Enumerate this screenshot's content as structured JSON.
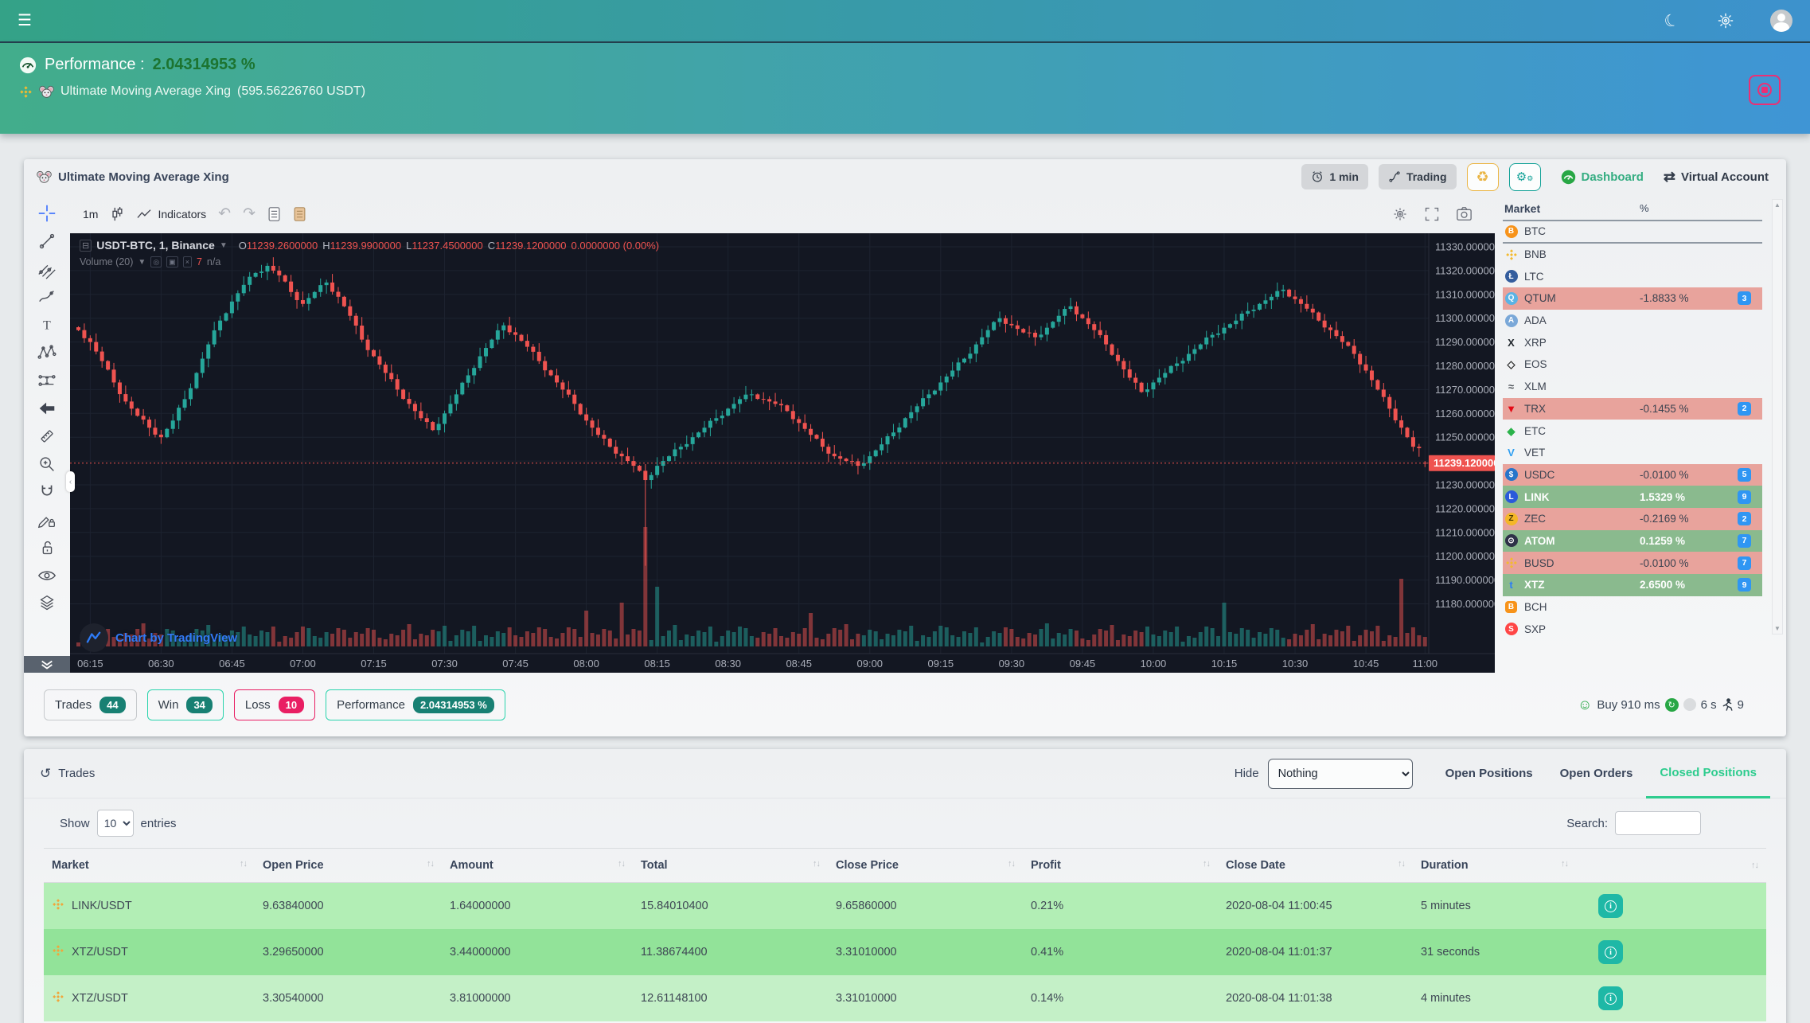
{
  "navbar": {
    "menu_icon": "☰",
    "moon_icon": "☾"
  },
  "header": {
    "performance_label": "Performance :",
    "performance_value": "2.04314953 %",
    "bot_title": "Ultimate Moving Average Xing",
    "bot_balance": "(595.56226760 USDT)"
  },
  "chart_card": {
    "title": "Ultimate Moving Average Xing",
    "controls": {
      "timeframe": "1 min",
      "mode": "Trading",
      "dashboard": "Dashboard",
      "virtual_account": "Virtual Account"
    },
    "tv": {
      "interval": "1m",
      "indicators_label": "Indicators",
      "legend": {
        "symbol": "USDT-BTC, 1, Binance",
        "o_label": "O",
        "o": "11239.2600000",
        "h_label": "H",
        "h": "11239.9900000",
        "l_label": "L",
        "l": "11237.4500000",
        "c_label": "C",
        "c": "11239.1200000",
        "change": "0.0000000 (0.00%)",
        "volume_label": "Volume (20)",
        "volume_value": "7",
        "volume_extra": "n/a"
      },
      "watermark": "Chart by TradingView",
      "price_label": "11239.1200000"
    },
    "footer": {
      "trades_label": "Trades",
      "trades_count": "44",
      "win_label": "Win",
      "win_count": "34",
      "loss_label": "Loss",
      "loss_count": "10",
      "perf_label": "Performance",
      "perf_value": "2.04314953 %",
      "status_buy": "Buy 910 ms",
      "status_interval": "6 s",
      "status_runs": "9"
    }
  },
  "market_panel": {
    "col_market": "Market",
    "col_pct": "%",
    "badge_color": "#2f96f3",
    "red_row_color": "#e8a39c",
    "green_row_color": "#8aba8e",
    "rows": [
      {
        "symbol": "BTC",
        "icon": "btc-icon",
        "style": "circle",
        "color": "#f7931a",
        "glyph": "B",
        "divider": true
      },
      {
        "symbol": "BNB",
        "icon": "bnb-icon",
        "style": "diamond",
        "color": "#f3ba2f"
      },
      {
        "symbol": "LTC",
        "icon": "ltc-icon",
        "style": "circle",
        "color": "#345d9d",
        "glyph": "Ł"
      },
      {
        "symbol": "QTUM",
        "icon": "qtum-icon",
        "style": "circle",
        "color": "#5bb3e4",
        "glyph": "Q",
        "state": "red",
        "pct": "-1.8833 %",
        "badge": "3"
      },
      {
        "symbol": "ADA",
        "icon": "ada-icon",
        "style": "circle",
        "color": "#7aa8d8",
        "glyph": "A"
      },
      {
        "symbol": "XRP",
        "icon": "xrp-icon",
        "style": "plain",
        "color": "#23292f",
        "glyph": "X"
      },
      {
        "symbol": "EOS",
        "icon": "eos-icon",
        "style": "plain",
        "color": "#2b2b2b",
        "glyph": "◇"
      },
      {
        "symbol": "XLM",
        "icon": "xlm-icon",
        "style": "plain",
        "color": "#4a4f55",
        "glyph": "≈"
      },
      {
        "symbol": "TRX",
        "icon": "trx-icon",
        "style": "plain",
        "color": "#e50915",
        "glyph": "▼",
        "state": "red",
        "pct": "-0.1455 %",
        "badge": "2"
      },
      {
        "symbol": "ETC",
        "icon": "etc-icon",
        "style": "plain",
        "color": "#2bb34b",
        "glyph": "◆"
      },
      {
        "symbol": "VET",
        "icon": "vet-icon",
        "style": "plain",
        "color": "#2f9ff1",
        "glyph": "V"
      },
      {
        "symbol": "USDC",
        "icon": "usdc-icon",
        "style": "circle",
        "color": "#2775ca",
        "glyph": "$",
        "state": "red",
        "pct": "-0.0100 %",
        "badge": "5"
      },
      {
        "symbol": "LINK",
        "icon": "link-icon",
        "style": "circle",
        "color": "#2a5ada",
        "glyph": "L",
        "state": "green",
        "pct": "1.5329 %",
        "badge": "9"
      },
      {
        "symbol": "ZEC",
        "icon": "zec-icon",
        "style": "circle",
        "color": "#f4b728",
        "glyph": "Z",
        "state": "red",
        "pct": "-0.2169 %",
        "badge": "2"
      },
      {
        "symbol": "ATOM",
        "icon": "atom-icon",
        "style": "circle",
        "color": "#2e3148",
        "glyph": "⊙",
        "state": "green",
        "pct": "0.1259 %",
        "badge": "7"
      },
      {
        "symbol": "BUSD",
        "icon": "busd-icon",
        "style": "diamond",
        "color": "#f3ba2f",
        "state": "red",
        "pct": "-0.0100 %",
        "badge": "7"
      },
      {
        "symbol": "XTZ",
        "icon": "xtz-icon",
        "style": "plain",
        "color": "#2c7df7",
        "glyph": "t",
        "state": "green",
        "pct": "2.6500 %",
        "badge": "9"
      },
      {
        "symbol": "BCH",
        "icon": "bch-icon",
        "style": "square",
        "color": "#f7931a",
        "glyph": "B"
      },
      {
        "symbol": "SXP",
        "icon": "sxp-icon",
        "style": "circle",
        "color": "#ff4646",
        "glyph": "S"
      }
    ]
  },
  "chart_data": {
    "type": "candlestick",
    "title": "USDT-BTC, 1, Binance",
    "interval": "1m",
    "grid": true,
    "legend_position": "top-left",
    "ylim": [
      11174,
      11336
    ],
    "y_min_tick": 11180,
    "y_max_tick": 11330,
    "y_step": 10,
    "x_ticks": [
      "06:15",
      "06:30",
      "06:45",
      "07:00",
      "07:15",
      "07:30",
      "07:45",
      "08:00",
      "08:15",
      "08:30",
      "08:45",
      "09:00",
      "09:15",
      "09:30",
      "09:45",
      "10:00",
      "10:15",
      "10:30",
      "10:45",
      "11:00"
    ],
    "current_price": 11239.12,
    "last_candle": {
      "o": 11239.26,
      "h": 11239.99,
      "l": 11237.45,
      "c": 11239.12
    },
    "spike_low": {
      "expanded_index": 96,
      "low": 11196
    },
    "closes": [
      11295,
      11290,
      11282,
      11273,
      11265,
      11259,
      11254,
      11250,
      11257,
      11266,
      11277,
      11289,
      11299,
      11307,
      11314,
      11319,
      11322,
      11318,
      11311,
      11306,
      11311,
      11315,
      11309,
      11301,
      11291,
      11284,
      11277,
      11270,
      11264,
      11258,
      11253,
      11260,
      11268,
      11276,
      11284,
      11291,
      11297,
      11293,
      11288,
      11282,
      11276,
      11270,
      11264,
      11257,
      11251,
      11246,
      11242,
      11238,
      11232,
      11238,
      11242,
      11246,
      11250,
      11254,
      11258,
      11262,
      11266,
      11268,
      11266,
      11264,
      11261,
      11256,
      11251,
      11246,
      11242,
      11240,
      11238,
      11242,
      11247,
      11252,
      11258,
      11263,
      11268,
      11273,
      11278,
      11283,
      11289,
      11295,
      11300,
      11297,
      11294,
      11292,
      11296,
      11301,
      11305,
      11300,
      11295,
      11289,
      11282,
      11275,
      11269,
      11273,
      11277,
      11281,
      11285,
      11289,
      11293,
      11296,
      11299,
      11303,
      11306,
      11309,
      11312,
      11308,
      11304,
      11299,
      11295,
      11290,
      11285,
      11278,
      11270,
      11262,
      11254,
      11246,
      11243
    ],
    "volume_spikes": {
      "86": 45,
      "92": 55,
      "96": 150,
      "98": 75,
      "124": 42,
      "194": 55,
      "224": 85
    },
    "colors": {
      "up": "#26a69a",
      "down": "#ef5350",
      "bg": "#131722",
      "grid": "#1d2330",
      "axis_text": "#a9adb8"
    }
  },
  "trades_section": {
    "title": "Trades",
    "hide_label": "Hide",
    "hide_value": "Nothing",
    "tabs": [
      {
        "label": "Open Positions",
        "active": false
      },
      {
        "label": "Open Orders",
        "active": false
      },
      {
        "label": "Closed Positions",
        "active": true
      }
    ],
    "show_label": "Show",
    "entries_value": "10",
    "entries_label": "entries",
    "search_label": "Search:",
    "columns": [
      "Market",
      "Open Price",
      "Amount",
      "Total",
      "Close Price",
      "Profit",
      "Close Date",
      "Duration",
      ""
    ],
    "rows": [
      {
        "market": "LINK/USDT",
        "open": "9.63840000",
        "amount": "1.64000000",
        "total": "15.84010400",
        "close": "9.65860000",
        "profit": "0.21%",
        "date": "2020-08-04 11:00:45",
        "duration": "5 minutes",
        "bg": "#b2eeb5"
      },
      {
        "market": "XTZ/USDT",
        "open": "3.29650000",
        "amount": "3.44000000",
        "total": "11.38674400",
        "close": "3.31010000",
        "profit": "0.41%",
        "date": "2020-08-04 11:01:37",
        "duration": "31 seconds",
        "bg": "#92e399"
      },
      {
        "market": "XTZ/USDT",
        "open": "3.30540000",
        "amount": "3.81000000",
        "total": "12.61148100",
        "close": "3.31010000",
        "profit": "0.14%",
        "date": "2020-08-04 11:01:38",
        "duration": "4 minutes",
        "bg": "#c4f0c7"
      }
    ]
  }
}
